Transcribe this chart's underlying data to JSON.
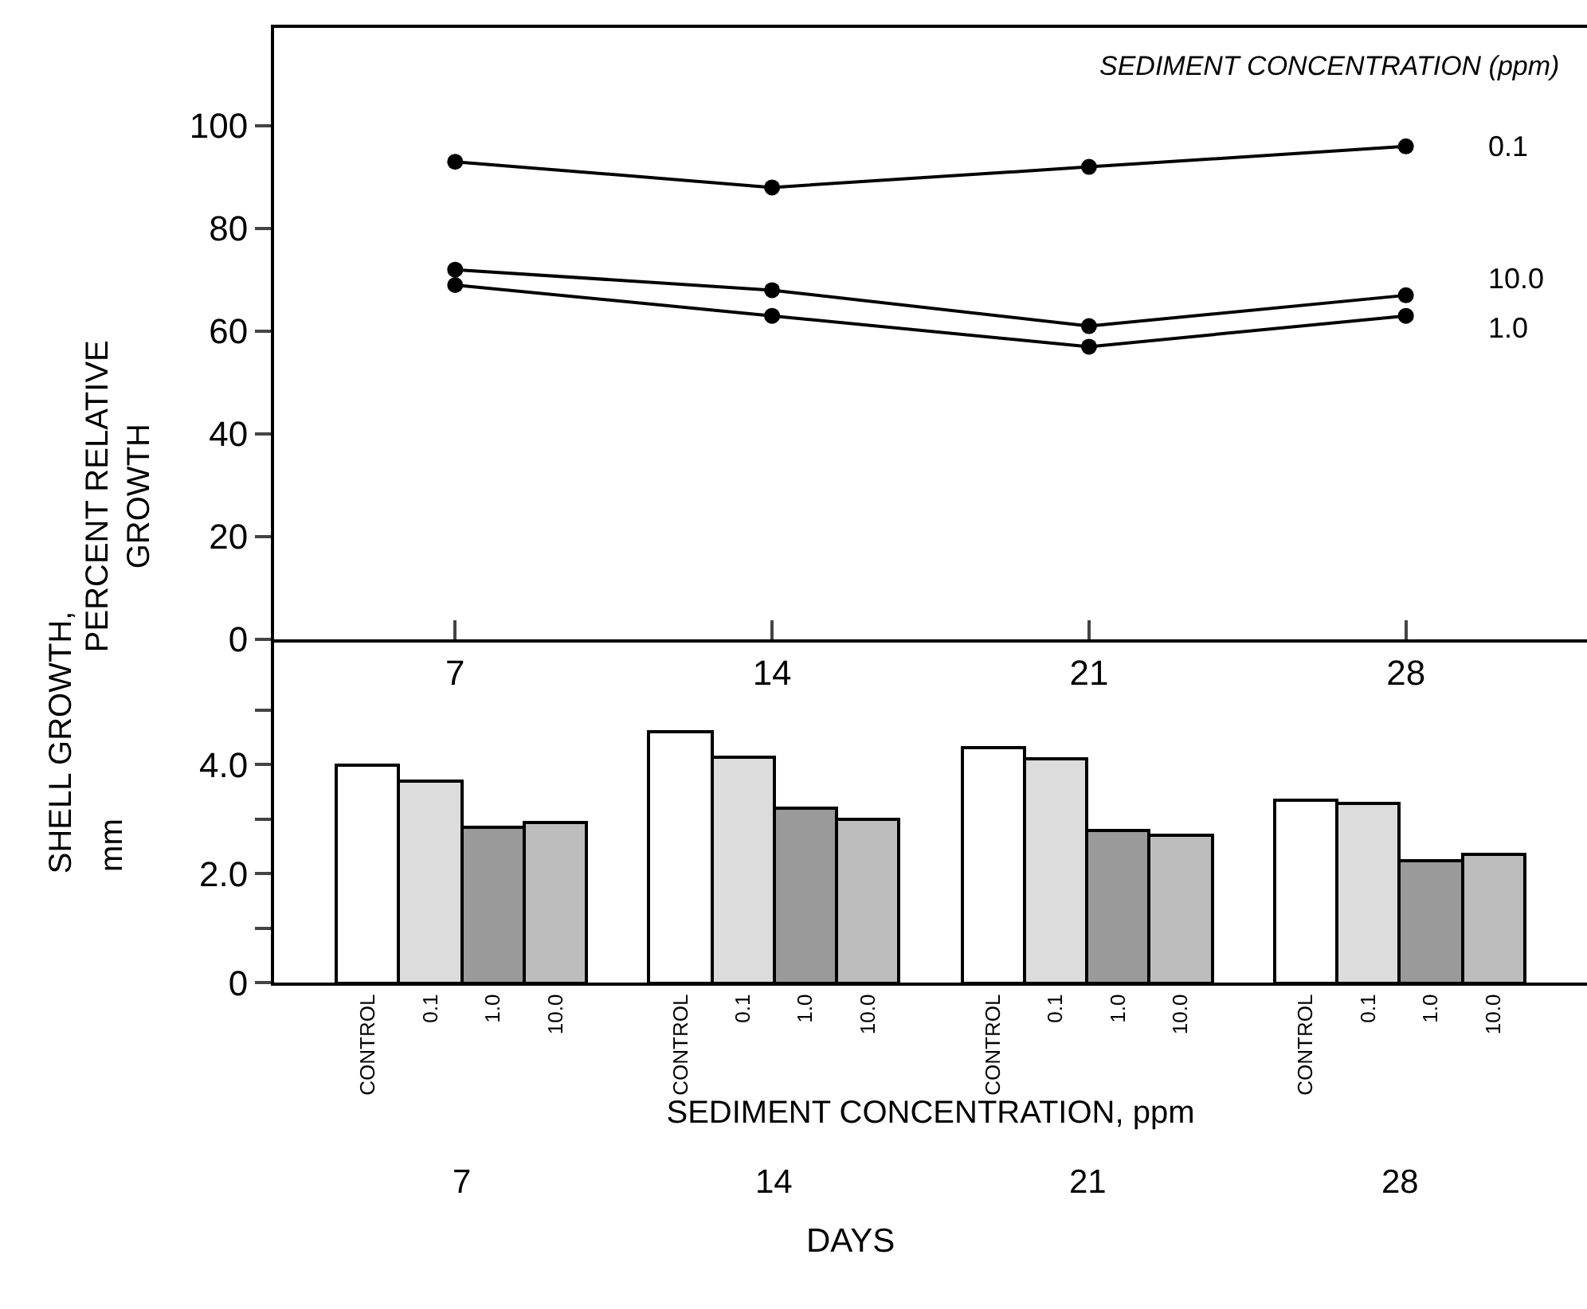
{
  "chart_data": [
    {
      "type": "line",
      "legend_title": "SEDIMENT CONCENTRATION (ppm)",
      "ylabel": "PERCENT RELATIVE GROWTH",
      "annotations": [
        "SHELL GROWTH,"
      ],
      "x": [
        7,
        14,
        21,
        28
      ],
      "xlim": [
        3,
        32
      ],
      "xticks": [
        7,
        14,
        21,
        28
      ],
      "ylim": [
        0,
        119
      ],
      "yticks": [
        0,
        20,
        40,
        60,
        80,
        100
      ],
      "grid": false,
      "marker": "circle",
      "line_style": "solid",
      "series": [
        {
          "name": "0.1",
          "color": "#000000",
          "values": [
            93,
            88,
            92,
            96
          ]
        },
        {
          "name": "10.0",
          "color": "#000000",
          "values": [
            72,
            68,
            61,
            67
          ]
        },
        {
          "name": "1.0",
          "color": "#000000",
          "values": [
            69,
            63,
            57,
            63
          ]
        }
      ]
    },
    {
      "type": "bar",
      "xlabel": "SEDIMENT CONCENTRATION, ppm",
      "ylabel": "mm",
      "annotations": [
        "7",
        "14",
        "21",
        "28",
        "DAYS"
      ],
      "ylim": [
        0,
        6.3
      ],
      "yticks": [
        0,
        {
          "value": 1,
          "label": null
        },
        {
          "value": 2,
          "label": "2.0"
        },
        {
          "value": 3,
          "label": null
        },
        {
          "value": 4,
          "label": "4.0"
        },
        {
          "value": 5,
          "label": null
        }
      ],
      "grid": false,
      "categories": [
        null,
        "CONTROL",
        "0.1",
        "1.0",
        "10.0",
        null,
        "CONTROL",
        "0.1",
        "1.0",
        "10.0",
        null,
        "CONTROL",
        "0.1",
        "1.0",
        "10.0",
        null,
        "CONTROL",
        "0.1",
        "1.0",
        "10.0",
        null
      ],
      "values": [
        null,
        4.0,
        3.7,
        2.85,
        2.95,
        null,
        4.6,
        4.15,
        3.2,
        3.0,
        null,
        4.3,
        4.1,
        2.8,
        2.7,
        null,
        3.35,
        3.3,
        2.25,
        2.35,
        null
      ],
      "colors": [
        null,
        "#ffffff",
        "#dcdcdc",
        "#9a9a9a",
        "#bdbdbd",
        null,
        "#ffffff",
        "#dcdcdc",
        "#9a9a9a",
        "#bdbdbd",
        null,
        "#ffffff",
        "#dcdcdc",
        "#9a9a9a",
        "#bdbdbd",
        null,
        "#ffffff",
        "#dcdcdc",
        "#9a9a9a",
        "#bdbdbd",
        null
      ]
    }
  ]
}
